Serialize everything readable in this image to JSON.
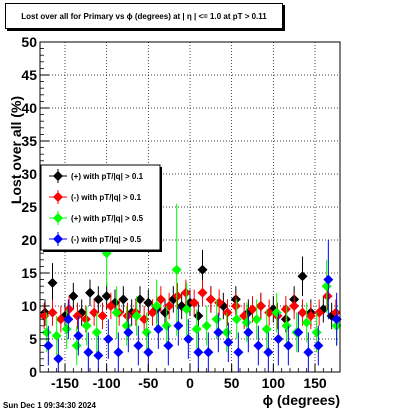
{
  "chart_data": {
    "type": "scatter",
    "title": "Lost over all for Primary vs ϕ (degrees) at |  η  | <= 1.0 at pT > 0.11",
    "xlabel": "ϕ (degrees)",
    "ylabel": "Lost over all (%)",
    "xlim": [
      -180,
      180
    ],
    "ylim": [
      0,
      50
    ],
    "x_ticks": [
      -150,
      -100,
      -50,
      0,
      50,
      100,
      150
    ],
    "y_ticks": [
      0,
      5,
      10,
      15,
      20,
      25,
      30,
      35,
      40,
      45,
      50
    ],
    "grid": true,
    "legend_position": "left",
    "series": [
      {
        "name": "(+) with pT/|q| > 0.1",
        "color": "#000000",
        "points": [
          {
            "x": -174,
            "y": 9,
            "err": 2
          },
          {
            "x": -165,
            "y": 13.5,
            "err": 3
          },
          {
            "x": -150,
            "y": 8.5,
            "err": 2
          },
          {
            "x": -140,
            "y": 11.5,
            "err": 2
          },
          {
            "x": -130,
            "y": 9,
            "err": 2
          },
          {
            "x": -120,
            "y": 12,
            "err": 2
          },
          {
            "x": -110,
            "y": 11,
            "err": 2
          },
          {
            "x": -100,
            "y": 11.5,
            "err": 2
          },
          {
            "x": -90,
            "y": 10.5,
            "err": 2
          },
          {
            "x": -80,
            "y": 11,
            "err": 2
          },
          {
            "x": -70,
            "y": 9,
            "err": 2
          },
          {
            "x": -60,
            "y": 11,
            "err": 2
          },
          {
            "x": -50,
            "y": 10.5,
            "err": 2
          },
          {
            "x": -40,
            "y": 9.5,
            "err": 2
          },
          {
            "x": -30,
            "y": 9,
            "err": 2
          },
          {
            "x": -20,
            "y": 11,
            "err": 2
          },
          {
            "x": -10,
            "y": 10,
            "err": 2
          },
          {
            "x": 0,
            "y": 10.5,
            "err": 2
          },
          {
            "x": 10,
            "y": 8.5,
            "err": 2
          },
          {
            "x": 15,
            "y": 15.5,
            "err": 3
          },
          {
            "x": 25,
            "y": 11,
            "err": 2
          },
          {
            "x": 40,
            "y": 10,
            "err": 2
          },
          {
            "x": 55,
            "y": 11,
            "err": 2
          },
          {
            "x": 70,
            "y": 9,
            "err": 2
          },
          {
            "x": 85,
            "y": 10,
            "err": 2
          },
          {
            "x": 100,
            "y": 9.5,
            "err": 2
          },
          {
            "x": 115,
            "y": 8,
            "err": 2
          },
          {
            "x": 125,
            "y": 11,
            "err": 2
          },
          {
            "x": 135,
            "y": 14.5,
            "err": 3
          },
          {
            "x": 145,
            "y": 9,
            "err": 2
          },
          {
            "x": 160,
            "y": 9.5,
            "err": 2
          },
          {
            "x": 170,
            "y": 8.5,
            "err": 2
          }
        ]
      },
      {
        "name": "(-) with pT/|q| > 0.1",
        "color": "#ff0000",
        "points": [
          {
            "x": -175,
            "y": 8.5,
            "err": 2
          },
          {
            "x": -165,
            "y": 9,
            "err": 2
          },
          {
            "x": -155,
            "y": 8,
            "err": 2
          },
          {
            "x": -145,
            "y": 9.5,
            "err": 2
          },
          {
            "x": -135,
            "y": 8.5,
            "err": 2
          },
          {
            "x": -125,
            "y": 8,
            "err": 2
          },
          {
            "x": -115,
            "y": 9,
            "err": 2
          },
          {
            "x": -105,
            "y": 8.5,
            "err": 2
          },
          {
            "x": -95,
            "y": 10,
            "err": 2
          },
          {
            "x": -85,
            "y": 9,
            "err": 2
          },
          {
            "x": -75,
            "y": 8.5,
            "err": 2
          },
          {
            "x": -65,
            "y": 9,
            "err": 2
          },
          {
            "x": -55,
            "y": 8,
            "err": 2
          },
          {
            "x": -45,
            "y": 9,
            "err": 2
          },
          {
            "x": -35,
            "y": 11,
            "err": 2
          },
          {
            "x": -25,
            "y": 10,
            "err": 2
          },
          {
            "x": -15,
            "y": 11.5,
            "err": 2
          },
          {
            "x": -5,
            "y": 12,
            "err": 2
          },
          {
            "x": 5,
            "y": 10.5,
            "err": 2
          },
          {
            "x": 15,
            "y": 12,
            "err": 2
          },
          {
            "x": 25,
            "y": 11,
            "err": 2
          },
          {
            "x": 35,
            "y": 10.5,
            "err": 2
          },
          {
            "x": 45,
            "y": 9,
            "err": 2
          },
          {
            "x": 55,
            "y": 10,
            "err": 2
          },
          {
            "x": 65,
            "y": 8.5,
            "err": 2
          },
          {
            "x": 75,
            "y": 9.5,
            "err": 2
          },
          {
            "x": 85,
            "y": 10,
            "err": 2
          },
          {
            "x": 95,
            "y": 9,
            "err": 2
          },
          {
            "x": 105,
            "y": 8.5,
            "err": 2
          },
          {
            "x": 115,
            "y": 9.5,
            "err": 2
          },
          {
            "x": 125,
            "y": 10,
            "err": 2
          },
          {
            "x": 135,
            "y": 9,
            "err": 2
          },
          {
            "x": 145,
            "y": 8.5,
            "err": 2
          },
          {
            "x": 155,
            "y": 9,
            "err": 2
          },
          {
            "x": 165,
            "y": 11.5,
            "err": 2
          },
          {
            "x": 175,
            "y": 9,
            "err": 2
          }
        ]
      },
      {
        "name": "(+) with pT/|q| > 0.5",
        "color": "#00ff00",
        "points": [
          {
            "x": -172,
            "y": 6,
            "err": 3
          },
          {
            "x": -160,
            "y": 5.5,
            "err": 3
          },
          {
            "x": -148,
            "y": 6.5,
            "err": 3
          },
          {
            "x": -136,
            "y": 4,
            "err": 3
          },
          {
            "x": -124,
            "y": 7,
            "err": 3
          },
          {
            "x": -112,
            "y": 6,
            "err": 3
          },
          {
            "x": -100,
            "y": 18,
            "err": 5
          },
          {
            "x": -88,
            "y": 9,
            "err": 4
          },
          {
            "x": -76,
            "y": 7,
            "err": 3
          },
          {
            "x": -64,
            "y": 8.5,
            "err": 3
          },
          {
            "x": -52,
            "y": 6,
            "err": 3
          },
          {
            "x": -40,
            "y": 10,
            "err": 4
          },
          {
            "x": -28,
            "y": 7,
            "err": 3
          },
          {
            "x": -16,
            "y": 15.5,
            "err": 10
          },
          {
            "x": -4,
            "y": 9.5,
            "err": 4
          },
          {
            "x": 8,
            "y": 6.5,
            "err": 3
          },
          {
            "x": 20,
            "y": 7,
            "err": 3
          },
          {
            "x": 32,
            "y": 8,
            "err": 3
          },
          {
            "x": 44,
            "y": 6,
            "err": 3
          },
          {
            "x": 56,
            "y": 8,
            "err": 3
          },
          {
            "x": 68,
            "y": 7.5,
            "err": 3
          },
          {
            "x": 80,
            "y": 8,
            "err": 3
          },
          {
            "x": 92,
            "y": 6.5,
            "err": 3
          },
          {
            "x": 104,
            "y": 9,
            "err": 3
          },
          {
            "x": 116,
            "y": 7,
            "err": 3
          },
          {
            "x": 128,
            "y": 6,
            "err": 3
          },
          {
            "x": 140,
            "y": 7.5,
            "err": 3
          },
          {
            "x": 152,
            "y": 6,
            "err": 3
          },
          {
            "x": 164,
            "y": 13,
            "err": 4
          },
          {
            "x": 176,
            "y": 7,
            "err": 3
          }
        ]
      },
      {
        "name": "(-) with pT/|q| > 0.5",
        "color": "#0000ff",
        "points": [
          {
            "x": -170,
            "y": 4,
            "err": 3
          },
          {
            "x": -158,
            "y": 2,
            "err": 3
          },
          {
            "x": -146,
            "y": 8,
            "err": 3
          },
          {
            "x": -134,
            "y": 5.5,
            "err": 3
          },
          {
            "x": -122,
            "y": 3,
            "err": 3
          },
          {
            "x": -110,
            "y": 2.5,
            "err": 3
          },
          {
            "x": -98,
            "y": 5,
            "err": 3
          },
          {
            "x": -86,
            "y": 3,
            "err": 3
          },
          {
            "x": -74,
            "y": 6,
            "err": 3
          },
          {
            "x": -62,
            "y": 4,
            "err": 3
          },
          {
            "x": -50,
            "y": 3,
            "err": 3
          },
          {
            "x": -38,
            "y": 6.5,
            "err": 3
          },
          {
            "x": -26,
            "y": 4,
            "err": 3
          },
          {
            "x": -14,
            "y": 7,
            "err": 3
          },
          {
            "x": -2,
            "y": 5,
            "err": 3
          },
          {
            "x": 10,
            "y": 3,
            "err": 3
          },
          {
            "x": 22,
            "y": 3,
            "err": 3
          },
          {
            "x": 34,
            "y": 6,
            "err": 3
          },
          {
            "x": 46,
            "y": 4.5,
            "err": 3
          },
          {
            "x": 58,
            "y": 3,
            "err": 3
          },
          {
            "x": 70,
            "y": 6,
            "err": 3
          },
          {
            "x": 82,
            "y": 4,
            "err": 3
          },
          {
            "x": 94,
            "y": 3,
            "err": 3
          },
          {
            "x": 106,
            "y": 5,
            "err": 4
          },
          {
            "x": 118,
            "y": 4,
            "err": 3
          },
          {
            "x": 130,
            "y": 6,
            "err": 3
          },
          {
            "x": 142,
            "y": 3,
            "err": 3
          },
          {
            "x": 154,
            "y": 4,
            "err": 3
          },
          {
            "x": 166,
            "y": 14,
            "err": 6
          },
          {
            "x": 176,
            "y": 8,
            "err": 4
          }
        ]
      }
    ]
  },
  "footer": {
    "timestamp": "Sun Dec  1 09:34:30 2024"
  }
}
